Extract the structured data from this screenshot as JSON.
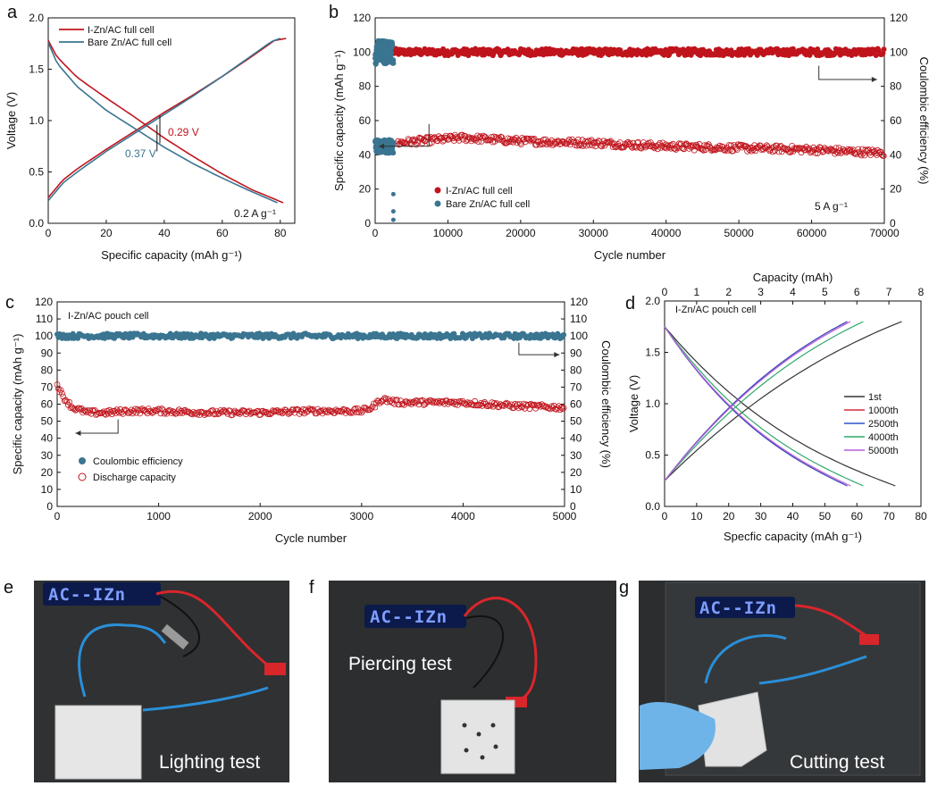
{
  "panels": {
    "a": "a",
    "b": "b",
    "c": "c",
    "d": "d",
    "e": "e",
    "f": "f",
    "g": "g"
  },
  "chart_data": [
    {
      "id": "a",
      "type": "line",
      "xlabel": "Specific capacity (mAh g⁻¹)",
      "ylabel": "Voltage (V)",
      "xlim": [
        0,
        85
      ],
      "ylim": [
        0,
        2.0
      ],
      "xticks": [
        0,
        20,
        40,
        60,
        80
      ],
      "yticks": [
        0.0,
        0.5,
        1.0,
        1.5,
        2.0
      ],
      "ytick_labels": [
        "0.0",
        "0.5",
        "1.0",
        "1.5",
        "2.0"
      ],
      "series": [
        {
          "name": "I-Zn/AC full cell",
          "color": "#c0141c",
          "charge": [
            [
              0,
              0.25
            ],
            [
              5,
              0.42
            ],
            [
              10,
              0.53
            ],
            [
              20,
              0.72
            ],
            [
              30,
              0.9
            ],
            [
              40,
              1.08
            ],
            [
              50,
              1.25
            ],
            [
              60,
              1.43
            ],
            [
              70,
              1.62
            ],
            [
              78,
              1.78
            ],
            [
              82,
              1.8
            ]
          ],
          "discharge": [
            [
              0,
              1.78
            ],
            [
              3,
              1.62
            ],
            [
              10,
              1.42
            ],
            [
              20,
              1.22
            ],
            [
              30,
              1.03
            ],
            [
              40,
              0.83
            ],
            [
              50,
              0.65
            ],
            [
              60,
              0.48
            ],
            [
              70,
              0.33
            ],
            [
              81,
              0.2
            ]
          ]
        },
        {
          "name": "Bare Zn/AC full cell",
          "color": "#3a7591",
          "charge": [
            [
              0,
              0.22
            ],
            [
              5,
              0.39
            ],
            [
              10,
              0.5
            ],
            [
              20,
              0.7
            ],
            [
              30,
              0.88
            ],
            [
              40,
              1.06
            ],
            [
              50,
              1.24
            ],
            [
              60,
              1.43
            ],
            [
              70,
              1.63
            ],
            [
              77,
              1.77
            ],
            [
              80,
              1.8
            ]
          ],
          "discharge": [
            [
              0,
              1.76
            ],
            [
              3,
              1.56
            ],
            [
              10,
              1.33
            ],
            [
              20,
              1.1
            ],
            [
              30,
              0.92
            ],
            [
              40,
              0.74
            ],
            [
              50,
              0.58
            ],
            [
              60,
              0.44
            ],
            [
              70,
              0.31
            ],
            [
              79,
              0.2
            ]
          ]
        }
      ],
      "annotations": {
        "red_gap": "0.29 V",
        "blue_gap": "0.37 V",
        "rate": "0.2 A g⁻¹"
      }
    },
    {
      "id": "b",
      "type": "scatter",
      "xlabel": "Cycle number",
      "ylabel": "Specific capacity (mAh g⁻¹)",
      "y2label": "Coulombic efficiency (%)",
      "xlim": [
        0,
        70000
      ],
      "ylim": [
        0,
        120
      ],
      "y2lim": [
        0,
        120
      ],
      "xticks": [
        0,
        10000,
        20000,
        30000,
        40000,
        50000,
        60000,
        70000
      ],
      "yticks": [
        0,
        20,
        40,
        60,
        80,
        100,
        120
      ],
      "series": [
        {
          "name": "I-Zn/AC full cell",
          "color": "#c0141c",
          "efficiency": [
            [
              0,
              100
            ],
            [
              10000,
              100
            ],
            [
              20000,
              100
            ],
            [
              30000,
              100
            ],
            [
              40000,
              100
            ],
            [
              50000,
              100
            ],
            [
              60000,
              100
            ],
            [
              70000,
              100
            ]
          ],
          "capacity": [
            [
              3000,
              47
            ],
            [
              6000,
              48
            ],
            [
              12000,
              50
            ],
            [
              20000,
              48
            ],
            [
              30000,
              47
            ],
            [
              40000,
              45
            ],
            [
              50000,
              44
            ],
            [
              60000,
              43
            ],
            [
              70000,
              41
            ]
          ]
        },
        {
          "name": "Bare Zn/AC full cell",
          "color": "#3a7591",
          "efficiency": [
            [
              0,
              100
            ],
            [
              2500,
              100
            ]
          ],
          "capacity": [
            [
              0,
              45
            ],
            [
              2500,
              45
            ]
          ]
        }
      ],
      "annotations": {
        "rate": "5 A g⁻¹"
      }
    },
    {
      "id": "c",
      "type": "scatter",
      "xlabel": "Cycle number",
      "ylabel": "Specific capacity (mAh g⁻¹)",
      "y2label": "Coulombic efficiency (%)",
      "xlim": [
        0,
        5000
      ],
      "ylim": [
        0,
        120
      ],
      "y2lim": [
        0,
        120
      ],
      "xticks": [
        0,
        1000,
        2000,
        3000,
        4000,
        5000
      ],
      "yticks": [
        0,
        10,
        20,
        30,
        40,
        50,
        60,
        70,
        80,
        90,
        100,
        110,
        120
      ],
      "series": [
        {
          "name": "Coulombic efficiency",
          "color": "#3a7591",
          "values": [
            [
              0,
              100
            ],
            [
              1000,
              100
            ],
            [
              2000,
              100
            ],
            [
              3000,
              100
            ],
            [
              4000,
              100
            ],
            [
              5000,
              100
            ]
          ]
        },
        {
          "name": "Discharge capacity",
          "color": "#c0141c",
          "values": [
            [
              0,
              72
            ],
            [
              50,
              65
            ],
            [
              150,
              58
            ],
            [
              300,
              55
            ],
            [
              500,
              55
            ],
            [
              700,
              56
            ],
            [
              1000,
              56
            ],
            [
              1500,
              55
            ],
            [
              2000,
              55
            ],
            [
              2500,
              56
            ],
            [
              3000,
              56
            ],
            [
              3100,
              58
            ],
            [
              3200,
              63
            ],
            [
              3350,
              61
            ],
            [
              3600,
              61
            ],
            [
              4000,
              61
            ],
            [
              4500,
              59
            ],
            [
              5000,
              58
            ]
          ]
        }
      ],
      "annotations": {
        "cell": "I-Zn/AC pouch cell"
      }
    },
    {
      "id": "d",
      "type": "line",
      "xlabel": "Specfic capacity (mAh g⁻¹)",
      "ylabel": "Voltage (V)",
      "x2label": "Capacity (mAh)",
      "xlim": [
        0,
        80
      ],
      "ylim": [
        0,
        2.0
      ],
      "x2lim": [
        0,
        8
      ],
      "xticks": [
        0,
        10,
        20,
        30,
        40,
        50,
        60,
        70,
        80
      ],
      "x2ticks": [
        0,
        1,
        2,
        3,
        4,
        5,
        6,
        7,
        8
      ],
      "yticks": [
        0.0,
        0.5,
        1.0,
        1.5,
        2.0
      ],
      "ytick_labels": [
        "0.0",
        "0.5",
        "1.0",
        "1.5",
        "2.0"
      ],
      "series": [
        {
          "name": "1st",
          "color": "#333333",
          "cap_charge": 74,
          "cap_discharge": 72
        },
        {
          "name": "1000th",
          "color": "#d9283a",
          "cap_charge": 57,
          "cap_discharge": 57
        },
        {
          "name": "2500th",
          "color": "#2e50c8",
          "cap_charge": 57,
          "cap_discharge": 57
        },
        {
          "name": "4000th",
          "color": "#2fa86b",
          "cap_charge": 62,
          "cap_discharge": 62
        },
        {
          "name": "5000th",
          "color": "#b85fd8",
          "cap_charge": 58,
          "cap_discharge": 58
        }
      ],
      "annotations": {
        "cell": "I-Zn/AC pouch cell"
      }
    }
  ],
  "photos": {
    "e": {
      "caption": "Lighting test",
      "display": "AC--IZn"
    },
    "f": {
      "caption": "Piercing test",
      "display": "AC--IZn"
    },
    "g": {
      "caption": "Cutting test",
      "display": "AC--IZn"
    }
  }
}
